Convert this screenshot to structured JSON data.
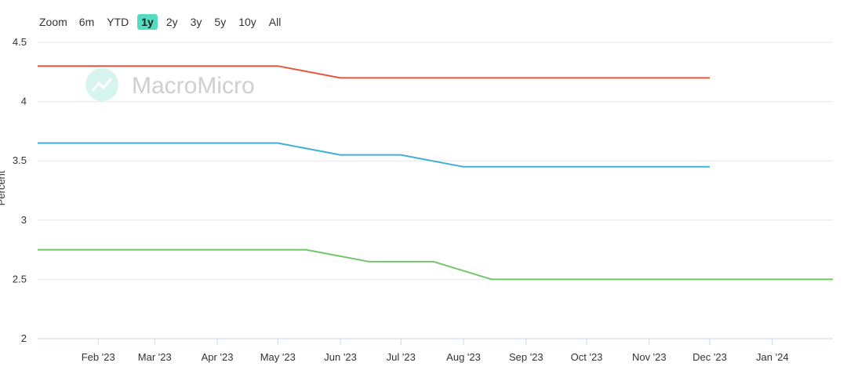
{
  "zoom": {
    "label": "Zoom",
    "buttons": [
      "6m",
      "YTD",
      "1y",
      "2y",
      "3y",
      "5y",
      "10y",
      "All"
    ],
    "active": "1y"
  },
  "watermark": "MacroMicro",
  "colors": {
    "accent": "#55dcc0",
    "series_red": "#e8553f",
    "series_blue": "#41afd8",
    "series_green": "#72c66a"
  },
  "chart_data": {
    "type": "line",
    "ylabel": "Percent",
    "ylim": [
      2,
      4.5
    ],
    "yticks": [
      "2",
      "2.5",
      "3",
      "3.5",
      "4",
      "4.5"
    ],
    "xlim": [
      "2023-01-02",
      "2024-01-31"
    ],
    "xticks": [
      {
        "date": "2023-02-01",
        "label": "Feb '23"
      },
      {
        "date": "2023-03-01",
        "label": "Mar '23"
      },
      {
        "date": "2023-04-01",
        "label": "Apr '23"
      },
      {
        "date": "2023-05-01",
        "label": "May '23"
      },
      {
        "date": "2023-06-01",
        "label": "Jun '23"
      },
      {
        "date": "2023-07-01",
        "label": "Jul '23"
      },
      {
        "date": "2023-08-01",
        "label": "Aug '23"
      },
      {
        "date": "2023-09-01",
        "label": "Sep '23"
      },
      {
        "date": "2023-10-01",
        "label": "Oct '23"
      },
      {
        "date": "2023-11-01",
        "label": "Nov '23"
      },
      {
        "date": "2023-12-01",
        "label": "Dec '23"
      },
      {
        "date": "2024-01-01",
        "label": "Jan '24"
      }
    ],
    "grid": true,
    "series": [
      {
        "color": "#e8553f",
        "points": [
          [
            "2023-01-02",
            4.3
          ],
          [
            "2023-05-01",
            4.3
          ],
          [
            "2023-06-01",
            4.2
          ],
          [
            "2023-12-01",
            4.2
          ]
        ]
      },
      {
        "color": "#41afd8",
        "points": [
          [
            "2023-01-02",
            3.65
          ],
          [
            "2023-05-01",
            3.65
          ],
          [
            "2023-06-01",
            3.55
          ],
          [
            "2023-07-01",
            3.55
          ],
          [
            "2023-08-01",
            3.45
          ],
          [
            "2023-12-01",
            3.45
          ]
        ]
      },
      {
        "color": "#72c66a",
        "points": [
          [
            "2023-01-02",
            2.75
          ],
          [
            "2023-05-15",
            2.75
          ],
          [
            "2023-06-15",
            2.65
          ],
          [
            "2023-07-17",
            2.65
          ],
          [
            "2023-08-15",
            2.5
          ],
          [
            "2024-01-31",
            2.5
          ]
        ]
      }
    ]
  }
}
